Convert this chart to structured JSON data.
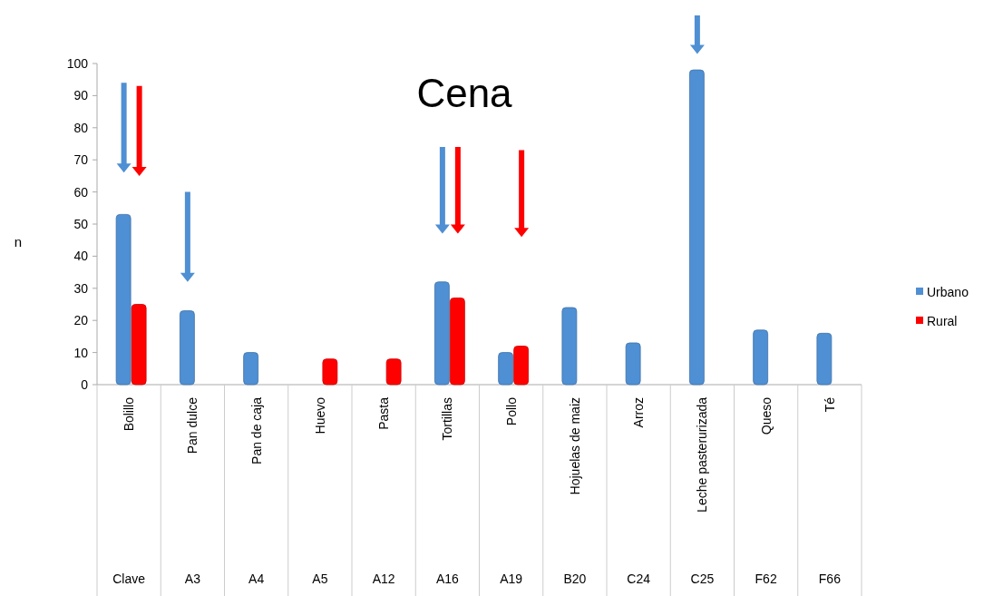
{
  "chart_data": {
    "type": "bar",
    "title": "Cena",
    "ylabel": "n",
    "categories": [
      "Bolillo",
      "Pan dulce",
      "Pan de caja",
      "Huevo",
      "Pasta",
      "Tortillas",
      "Pollo",
      "Hojuelas de maiz",
      "Arroz",
      "Leche pasterurizada",
      "Queso",
      "Té"
    ],
    "annotations": [
      "Clave",
      "A3",
      "A4",
      "A5",
      "A12",
      "A16",
      "A19",
      "B20",
      "C24",
      "C25",
      "F62",
      "F66"
    ],
    "series": [
      {
        "name": "Urbano",
        "color": "#4f8fd3",
        "values": [
          53,
          23,
          10,
          null,
          null,
          32,
          10,
          24,
          13,
          98,
          17,
          16
        ]
      },
      {
        "name": "Rural",
        "color": "#ff0000",
        "values": [
          25,
          null,
          null,
          8,
          8,
          27,
          12,
          null,
          null,
          null,
          null,
          null
        ]
      }
    ],
    "ylim": [
      0,
      100
    ],
    "yticks": [
      0,
      10,
      20,
      30,
      40,
      50,
      60,
      70,
      80,
      90,
      100
    ],
    "legend": "right"
  }
}
